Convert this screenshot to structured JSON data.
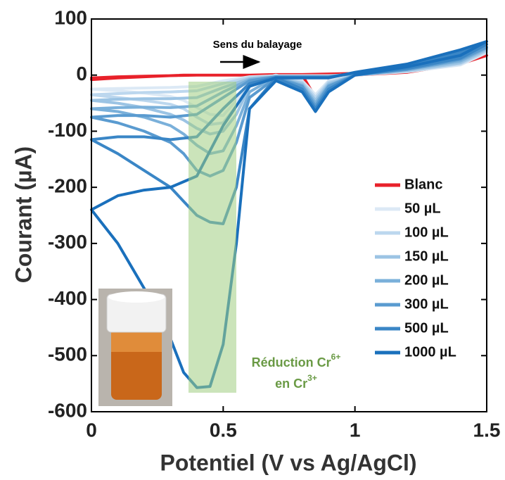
{
  "chart_data": {
    "type": "line",
    "x_label": "Potentiel (V vs Ag/AgCl)",
    "y_label": "Courant (µA)",
    "annotation": "Sens du balayage",
    "highlight_label": {
      "line1": "Réduction Cr",
      "sup1": "6+",
      "line2": "en Cr",
      "sup2": "3+"
    },
    "x": [
      0,
      0.1,
      0.2,
      0.3,
      0.35,
      0.4,
      0.45,
      0.5,
      0.55,
      0.6,
      0.7,
      0.8,
      0.85,
      0.9,
      1,
      1.2,
      1.4,
      1.5,
      1.4,
      1.2,
      1,
      0.9,
      0.8,
      0.7,
      0.6,
      0.5,
      0.4,
      0.3,
      0.2,
      0.1,
      0
    ],
    "series": [
      {
        "name": "Blanc",
        "color": "#e8212a",
        "values": [
          -8,
          -5,
          -3,
          -1,
          0,
          0,
          0,
          0,
          0,
          0,
          0,
          0,
          -40,
          -10,
          0,
          5,
          20,
          35,
          25,
          10,
          3,
          2,
          1,
          1,
          0,
          0,
          0,
          -1,
          -2,
          -3,
          -5
        ]
      },
      {
        "name": "50 µL",
        "color": "#dce9f5",
        "values": [
          -25,
          -28,
          -32,
          -38,
          -45,
          -58,
          -70,
          -72,
          -45,
          -10,
          0,
          -10,
          -35,
          -10,
          0,
          6,
          18,
          40,
          28,
          9,
          1,
          -1,
          -1,
          -1,
          -3,
          -10,
          -20,
          -22,
          -23,
          -24,
          -25
        ]
      },
      {
        "name": "100 µL",
        "color": "#bcd7ee",
        "values": [
          -35,
          -40,
          -45,
          -52,
          -60,
          -75,
          -88,
          -85,
          -55,
          -15,
          -1,
          -12,
          -40,
          -12,
          0,
          7,
          20,
          42,
          30,
          10,
          2,
          -2,
          -2,
          -2,
          -4,
          -15,
          -28,
          -30,
          -31,
          -33,
          -35
        ]
      },
      {
        "name": "150 µL",
        "color": "#9cc4e4",
        "values": [
          -45,
          -50,
          -58,
          -70,
          -80,
          -95,
          -105,
          -100,
          -70,
          -20,
          -2,
          -15,
          -45,
          -15,
          0,
          8,
          22,
          45,
          32,
          12,
          2,
          -2,
          -2,
          -2,
          -6,
          -22,
          -40,
          -42,
          -42,
          -43,
          -45
        ]
      },
      {
        "name": "200 µL",
        "color": "#7ab0da",
        "values": [
          -60,
          -65,
          -75,
          -90,
          -105,
          -125,
          -140,
          -135,
          -90,
          -30,
          -3,
          -18,
          -50,
          -18,
          0,
          10,
          25,
          48,
          35,
          14,
          3,
          -3,
          -3,
          -3,
          -8,
          -30,
          -55,
          -58,
          -57,
          -58,
          -60
        ]
      },
      {
        "name": "300 µL",
        "color": "#5a9bd0",
        "values": [
          -75,
          -85,
          -100,
          -120,
          -140,
          -170,
          -180,
          -170,
          -120,
          -40,
          -5,
          -20,
          -55,
          -20,
          0,
          10,
          28,
          50,
          38,
          15,
          3,
          -3,
          -3,
          -3,
          -10,
          -40,
          -70,
          -75,
          -72,
          -72,
          -75
        ]
      },
      {
        "name": "500 µL",
        "color": "#3a86c6",
        "values": [
          -115,
          -140,
          -170,
          -200,
          -225,
          -250,
          -262,
          -265,
          -200,
          -60,
          -5,
          -25,
          -60,
          -25,
          0,
          12,
          30,
          55,
          40,
          18,
          4,
          -4,
          -4,
          -4,
          -15,
          -60,
          -110,
          -115,
          -110,
          -110,
          -115
        ]
      },
      {
        "name": "1000 µL",
        "color": "#1a70bc",
        "values": [
          -240,
          -300,
          -380,
          -470,
          -530,
          -557,
          -555,
          -480,
          -300,
          -60,
          -10,
          -30,
          -65,
          -30,
          0,
          15,
          35,
          60,
          45,
          20,
          5,
          -5,
          -5,
          -5,
          -20,
          -90,
          -180,
          -200,
          -205,
          -215,
          -240
        ]
      }
    ],
    "xlim": [
      0,
      1.5
    ],
    "xticks": [
      0,
      0.5,
      1,
      1.5
    ],
    "ylim": [
      -600,
      100
    ],
    "yticks": [
      100,
      0,
      -100,
      -200,
      -300,
      -400,
      -500,
      -600
    ],
    "grid": false,
    "legend": "right"
  }
}
